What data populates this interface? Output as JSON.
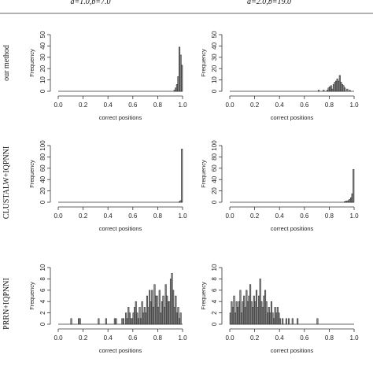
{
  "column_headers": [
    "a=1.0,b=7.0",
    "a=2.0,b=19.0"
  ],
  "row_labels": [
    "our method",
    "CLUSTALW+IQPNNI",
    "PRRN+IQPNNI"
  ],
  "chart_data": [
    {
      "type": "bar",
      "row": 0,
      "col": 0,
      "xlabel": "correct positions",
      "ylabel": "Frequency",
      "xlim": [
        0,
        1
      ],
      "ylim": [
        0,
        50
      ],
      "xticks": [
        "0.0",
        "0.2",
        "0.4",
        "0.6",
        "0.8",
        "1.0"
      ],
      "yticks": [
        "0",
        "10",
        "20",
        "30",
        "40",
        "50"
      ],
      "bin_width": 0.01,
      "bins": [
        [
          0.94,
          1
        ],
        [
          0.95,
          3
        ],
        [
          0.96,
          6
        ],
        [
          0.97,
          13
        ],
        [
          0.98,
          39
        ],
        [
          0.99,
          32
        ],
        [
          1.0,
          23
        ]
      ]
    },
    {
      "type": "bar",
      "row": 0,
      "col": 1,
      "xlabel": "correct positions",
      "ylabel": "Frequency",
      "xlim": [
        0,
        1
      ],
      "ylim": [
        0,
        50
      ],
      "xticks": [
        "0.0",
        "0.2",
        "0.4",
        "0.6",
        "0.8",
        "1.0"
      ],
      "yticks": [
        "0",
        "10",
        "20",
        "30",
        "40",
        "50"
      ],
      "bin_width": 0.01,
      "bins": [
        [
          0.72,
          1
        ],
        [
          0.76,
          1
        ],
        [
          0.79,
          1
        ],
        [
          0.8,
          3
        ],
        [
          0.81,
          4
        ],
        [
          0.82,
          5
        ],
        [
          0.83,
          2
        ],
        [
          0.84,
          6
        ],
        [
          0.85,
          8
        ],
        [
          0.86,
          9
        ],
        [
          0.87,
          11
        ],
        [
          0.88,
          9
        ],
        [
          0.89,
          14
        ],
        [
          0.9,
          8
        ],
        [
          0.91,
          6
        ],
        [
          0.92,
          5
        ],
        [
          0.93,
          3
        ],
        [
          0.95,
          2
        ],
        [
          0.97,
          1
        ]
      ]
    },
    {
      "type": "bar",
      "row": 1,
      "col": 0,
      "xlabel": "correct positions",
      "ylabel": "Frequency",
      "xlim": [
        0,
        1
      ],
      "ylim": [
        0,
        100
      ],
      "xticks": [
        "0.0",
        "0.2",
        "0.4",
        "0.6",
        "0.8",
        "1.0"
      ],
      "yticks": [
        "0",
        "20",
        "40",
        "60",
        "80",
        "100"
      ],
      "bin_width": 0.01,
      "bins": [
        [
          0.98,
          1
        ],
        [
          0.99,
          3
        ],
        [
          1.0,
          94
        ]
      ]
    },
    {
      "type": "bar",
      "row": 1,
      "col": 1,
      "xlabel": "correct positions",
      "ylabel": "Frequency",
      "xlim": [
        0,
        1
      ],
      "ylim": [
        0,
        100
      ],
      "xticks": [
        "0.0",
        "0.2",
        "0.4",
        "0.6",
        "0.8",
        "1.0"
      ],
      "yticks": [
        "0",
        "20",
        "40",
        "60",
        "80",
        "100"
      ],
      "bin_width": 0.01,
      "bins": [
        [
          0.93,
          1
        ],
        [
          0.94,
          2
        ],
        [
          0.95,
          2
        ],
        [
          0.96,
          3
        ],
        [
          0.97,
          5
        ],
        [
          0.98,
          8
        ],
        [
          0.99,
          15
        ],
        [
          1.0,
          58
        ]
      ]
    },
    {
      "type": "bar",
      "row": 2,
      "col": 0,
      "xlabel": "correct positions",
      "ylabel": "Frequency",
      "xlim": [
        0,
        1
      ],
      "ylim": [
        0,
        10
      ],
      "xticks": [
        "0.0",
        "0.2",
        "0.4",
        "0.6",
        "0.8",
        "1.0"
      ],
      "yticks": [
        "0",
        "2",
        "4",
        "6",
        "8",
        "10"
      ],
      "bin_width": 0.01,
      "bins": [
        [
          0.11,
          1
        ],
        [
          0.17,
          1
        ],
        [
          0.18,
          1
        ],
        [
          0.33,
          1
        ],
        [
          0.39,
          1
        ],
        [
          0.46,
          1
        ],
        [
          0.47,
          1
        ],
        [
          0.52,
          1
        ],
        [
          0.53,
          1
        ],
        [
          0.55,
          2
        ],
        [
          0.56,
          1
        ],
        [
          0.57,
          3
        ],
        [
          0.58,
          2
        ],
        [
          0.59,
          1
        ],
        [
          0.6,
          1
        ],
        [
          0.61,
          2
        ],
        [
          0.62,
          3
        ],
        [
          0.63,
          4
        ],
        [
          0.64,
          2
        ],
        [
          0.65,
          1
        ],
        [
          0.66,
          3
        ],
        [
          0.67,
          1
        ],
        [
          0.68,
          4
        ],
        [
          0.69,
          2
        ],
        [
          0.7,
          3
        ],
        [
          0.71,
          2
        ],
        [
          0.72,
          5
        ],
        [
          0.73,
          3
        ],
        [
          0.74,
          6
        ],
        [
          0.75,
          4
        ],
        [
          0.76,
          6
        ],
        [
          0.77,
          3
        ],
        [
          0.78,
          7
        ],
        [
          0.79,
          5
        ],
        [
          0.8,
          5
        ],
        [
          0.81,
          3
        ],
        [
          0.82,
          6
        ],
        [
          0.83,
          2
        ],
        [
          0.84,
          4
        ],
        [
          0.85,
          5
        ],
        [
          0.86,
          3
        ],
        [
          0.87,
          7
        ],
        [
          0.88,
          5
        ],
        [
          0.89,
          4
        ],
        [
          0.9,
          4
        ],
        [
          0.91,
          8
        ],
        [
          0.92,
          9
        ],
        [
          0.93,
          6
        ],
        [
          0.94,
          3
        ],
        [
          0.95,
          5
        ],
        [
          0.96,
          2
        ],
        [
          0.97,
          3
        ],
        [
          0.98,
          1
        ],
        [
          0.99,
          2
        ]
      ]
    },
    {
      "type": "bar",
      "row": 2,
      "col": 1,
      "xlabel": "correct positions",
      "ylabel": "Frequency",
      "xlim": [
        0,
        1
      ],
      "ylim": [
        0,
        10
      ],
      "xticks": [
        "0.0",
        "0.2",
        "0.4",
        "0.6",
        "0.8",
        "1.0"
      ],
      "yticks": [
        "0",
        "2",
        "4",
        "6",
        "8",
        "10"
      ],
      "bin_width": 0.01,
      "bins": [
        [
          0.01,
          2
        ],
        [
          0.02,
          4
        ],
        [
          0.03,
          3
        ],
        [
          0.04,
          5
        ],
        [
          0.05,
          2
        ],
        [
          0.06,
          4
        ],
        [
          0.07,
          3
        ],
        [
          0.08,
          4
        ],
        [
          0.09,
          6
        ],
        [
          0.1,
          2
        ],
        [
          0.11,
          4
        ],
        [
          0.12,
          5
        ],
        [
          0.13,
          3
        ],
        [
          0.14,
          6
        ],
        [
          0.15,
          4
        ],
        [
          0.16,
          5
        ],
        [
          0.17,
          7
        ],
        [
          0.18,
          4
        ],
        [
          0.19,
          3
        ],
        [
          0.2,
          5
        ],
        [
          0.21,
          4
        ],
        [
          0.22,
          6
        ],
        [
          0.23,
          3
        ],
        [
          0.24,
          5
        ],
        [
          0.25,
          8
        ],
        [
          0.26,
          4
        ],
        [
          0.27,
          3
        ],
        [
          0.28,
          5
        ],
        [
          0.29,
          6
        ],
        [
          0.3,
          4
        ],
        [
          0.31,
          2
        ],
        [
          0.32,
          3
        ],
        [
          0.33,
          2
        ],
        [
          0.34,
          4
        ],
        [
          0.35,
          2
        ],
        [
          0.36,
          1
        ],
        [
          0.37,
          3
        ],
        [
          0.38,
          2
        ],
        [
          0.39,
          3
        ],
        [
          0.4,
          2
        ],
        [
          0.41,
          1
        ],
        [
          0.43,
          1
        ],
        [
          0.46,
          1
        ],
        [
          0.48,
          1
        ],
        [
          0.51,
          1
        ],
        [
          0.55,
          1
        ],
        [
          0.71,
          1
        ]
      ]
    }
  ]
}
